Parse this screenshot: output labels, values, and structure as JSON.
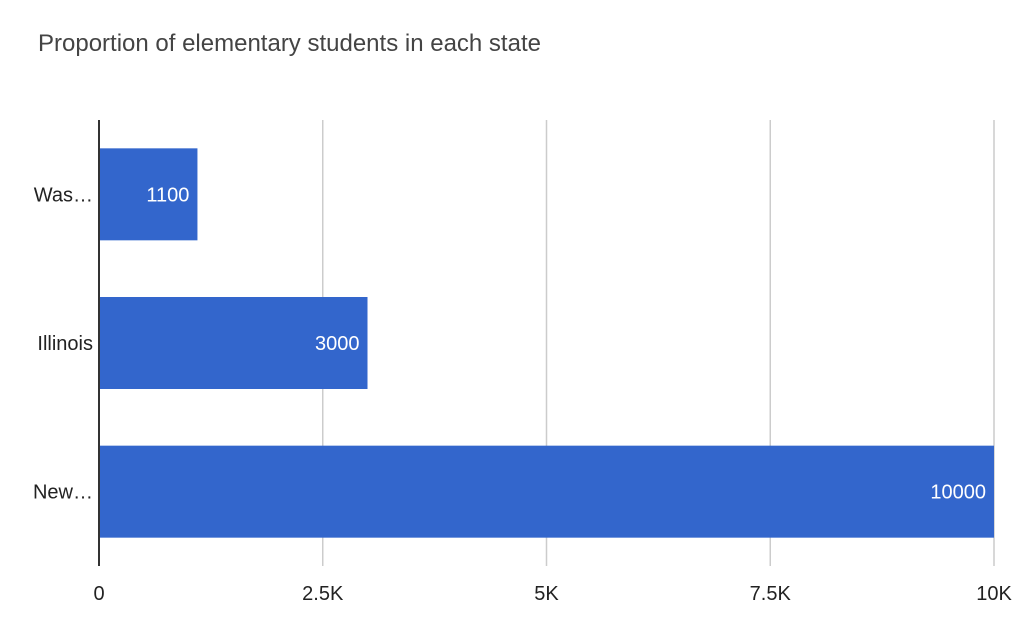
{
  "chart_data": {
    "type": "bar",
    "orientation": "horizontal",
    "title": "Proportion of elementary students in each state",
    "xlabel": "",
    "ylabel": "",
    "categories": [
      "Was…",
      "Illinois",
      "New…"
    ],
    "values": [
      1100,
      3000,
      10000
    ],
    "data_labels": [
      "1100",
      "3000",
      "10000"
    ],
    "xlim": [
      0,
      10000
    ],
    "x_ticks": [
      0,
      2500,
      5000,
      7500,
      10000
    ],
    "x_tick_labels": [
      "0",
      "2.5K",
      "5K",
      "7.5K",
      "10K"
    ],
    "grid": true,
    "legend": "none",
    "bar_color": "#3366cc",
    "gridline_color": "#cccccc",
    "axis_color": "#333333"
  }
}
